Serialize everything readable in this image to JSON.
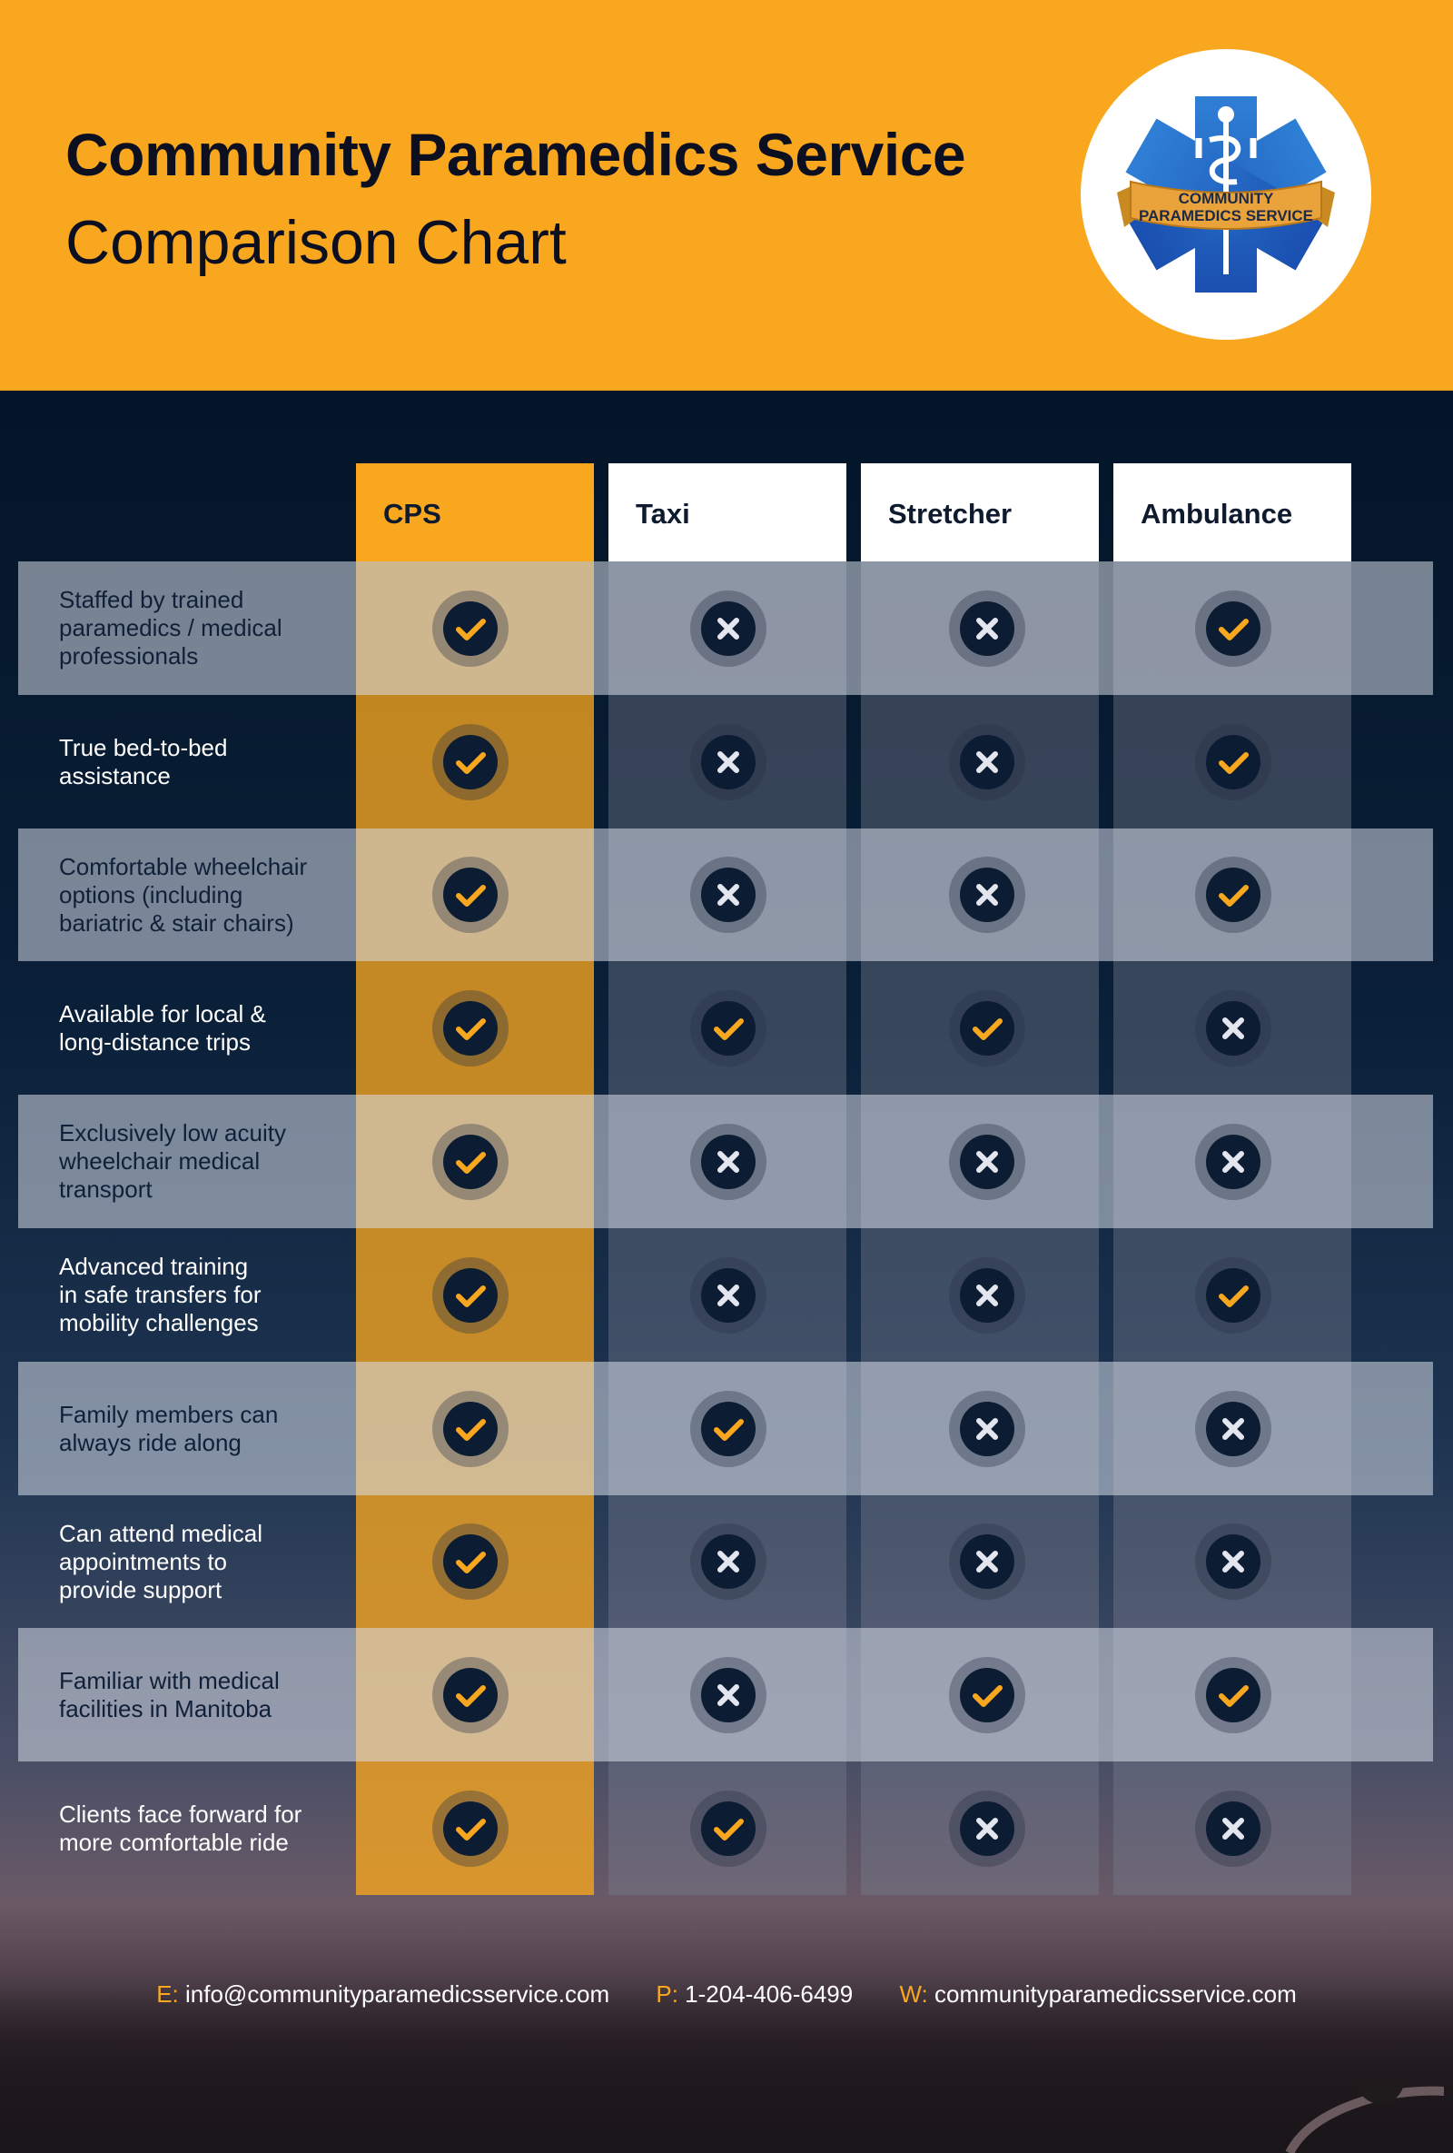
{
  "header": {
    "title": "Community Paramedics Service",
    "subtitle": "Comparison Chart",
    "logo_text_line1": "COMMUNITY",
    "logo_text_line2": "PARAMEDICS SERVICE"
  },
  "columns": [
    "CPS",
    "Taxi",
    "Stretcher",
    "Ambulance"
  ],
  "rows": [
    {
      "label": "Staffed by trained\nparamedics / medical\nprofessionals",
      "values": [
        true,
        false,
        false,
        true
      ]
    },
    {
      "label": "True bed-to-bed\nassistance",
      "values": [
        true,
        false,
        false,
        true
      ]
    },
    {
      "label": "Comfortable wheelchair\noptions (including\nbariatric & stair chairs)",
      "values": [
        true,
        false,
        false,
        true
      ]
    },
    {
      "label": "Available for local &\nlong-distance trips",
      "values": [
        true,
        true,
        true,
        false
      ]
    },
    {
      "label": "Exclusively low acuity\nwheelchair medical\ntransport",
      "values": [
        true,
        false,
        false,
        false
      ]
    },
    {
      "label": "Advanced training\nin safe transfers for\nmobility challenges",
      "values": [
        true,
        false,
        false,
        true
      ]
    },
    {
      "label": "Family members can\nalways ride along",
      "values": [
        true,
        true,
        false,
        false
      ]
    },
    {
      "label": "Can attend medical\nappointments to\nprovide support",
      "values": [
        true,
        false,
        false,
        false
      ]
    },
    {
      "label": "Familiar with medical\nfacilities in Manitoba",
      "values": [
        true,
        false,
        true,
        true
      ]
    },
    {
      "label": "Clients face forward for\nmore comfortable ride",
      "values": [
        true,
        true,
        false,
        false
      ]
    }
  ],
  "icons": {
    "yes": "checkmark-icon",
    "no": "x-mark-icon"
  },
  "footer": {
    "email_key": "E:",
    "email": "info@communityparamedicsservice.com",
    "phone_key": "P:",
    "phone": "1-204-406-6499",
    "web_key": "W:",
    "web": "communityparamedicsservice.com"
  },
  "colors": {
    "accent": "#f9a71f",
    "navy": "#06152a",
    "icon_dark": "#0c1d33"
  }
}
